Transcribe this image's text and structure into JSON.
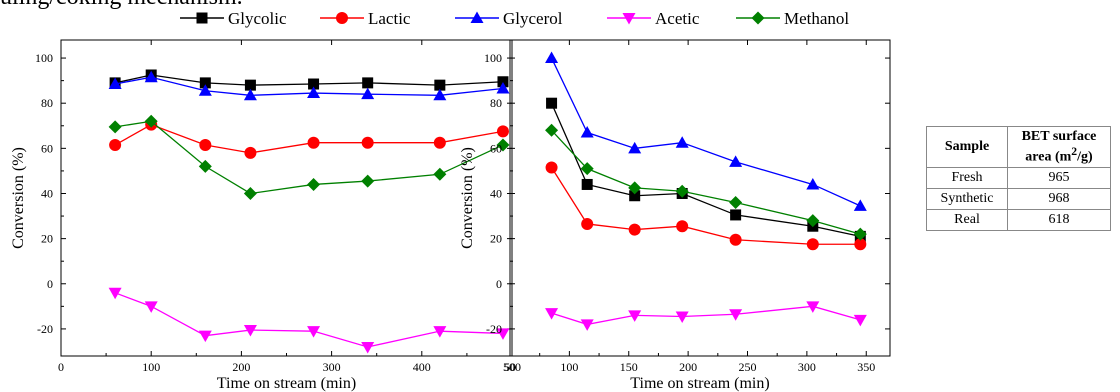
{
  "caption_fragment": "uling/coking mechanism.",
  "legend": [
    {
      "name": "Glycolic",
      "color": "#000000",
      "marker": "square"
    },
    {
      "name": "Lactic",
      "color": "#ff0000",
      "marker": "circle"
    },
    {
      "name": "Glycerol",
      "color": "#0000ff",
      "marker": "triangle-up"
    },
    {
      "name": "Acetic",
      "color": "#ff00ff",
      "marker": "triangle-down"
    },
    {
      "name": "Methanol",
      "color": "#008000",
      "marker": "diamond"
    }
  ],
  "chart_data": [
    {
      "type": "line",
      "xlabel": "Time on stream (min)",
      "ylabel": "Conversion (%)",
      "xlim": [
        0,
        500
      ],
      "ylim": [
        -32,
        108
      ],
      "xticks": [
        0,
        100,
        200,
        300,
        400,
        500
      ],
      "yticks": [
        -20,
        0,
        20,
        40,
        60,
        80,
        100
      ],
      "grid": false,
      "series": [
        {
          "name": "Glycolic",
          "x": [
            60,
            100,
            160,
            210,
            280,
            340,
            420,
            490
          ],
          "y": [
            89,
            92.5,
            89,
            88,
            88.5,
            89,
            88,
            89.5
          ]
        },
        {
          "name": "Lactic",
          "x": [
            60,
            100,
            160,
            210,
            280,
            340,
            420,
            490
          ],
          "y": [
            61.5,
            70.5,
            61.5,
            58,
            62.5,
            62.5,
            62.5,
            67.5
          ]
        },
        {
          "name": "Glycerol",
          "x": [
            60,
            100,
            160,
            210,
            280,
            340,
            420,
            490
          ],
          "y": [
            88.5,
            91.5,
            85.5,
            83.5,
            84.5,
            84,
            83.5,
            86.5
          ]
        },
        {
          "name": "Acetic",
          "x": [
            60,
            100,
            160,
            210,
            280,
            340,
            420,
            490
          ],
          "y": [
            -4,
            -10,
            -23,
            -20.5,
            -21,
            -28,
            -21,
            -22
          ]
        },
        {
          "name": "Methanol",
          "x": [
            60,
            100,
            160,
            210,
            280,
            340,
            420,
            490
          ],
          "y": [
            69.5,
            72,
            52,
            40,
            44,
            45.5,
            48.5,
            61.5
          ]
        }
      ]
    },
    {
      "type": "line",
      "xlabel": "Time on stream (min)",
      "ylabel": "Conversion (%)",
      "xlim": [
        50,
        370
      ],
      "ylim": [
        -32,
        108
      ],
      "xticks": [
        50,
        100,
        150,
        200,
        250,
        300,
        350
      ],
      "yticks": [
        -20,
        0,
        20,
        40,
        60,
        80,
        100
      ],
      "grid": false,
      "series": [
        {
          "name": "Glycolic",
          "x": [
            85,
            115,
            155,
            195,
            240,
            305,
            345
          ],
          "y": [
            80,
            44,
            39,
            40,
            30.5,
            25.5,
            21
          ]
        },
        {
          "name": "Lactic",
          "x": [
            85,
            115,
            155,
            195,
            240,
            305,
            345
          ],
          "y": [
            51.5,
            26.5,
            24,
            25.5,
            19.5,
            17.5,
            17.5
          ]
        },
        {
          "name": "Glycerol",
          "x": [
            85,
            115,
            155,
            195,
            240,
            305,
            345
          ],
          "y": [
            100,
            67,
            60,
            62.5,
            54,
            44,
            34.5
          ]
        },
        {
          "name": "Acetic",
          "x": [
            85,
            115,
            155,
            195,
            240,
            305,
            345
          ],
          "y": [
            -13,
            -18,
            -14,
            -14.5,
            -13.5,
            -10,
            -16
          ]
        },
        {
          "name": "Methanol",
          "x": [
            85,
            115,
            155,
            195,
            240,
            305,
            345
          ],
          "y": [
            68,
            51,
            42.5,
            41,
            36,
            28,
            22
          ]
        }
      ]
    },
    {
      "type": "table",
      "columns": [
        "Sample",
        "BET surface area (m²/g)"
      ],
      "rows": [
        [
          "Fresh",
          "965"
        ],
        [
          "Synthetic",
          "968"
        ],
        [
          "Real",
          "618"
        ]
      ]
    }
  ],
  "table": {
    "header_sample": "Sample",
    "header_bet_pre": "BET surface",
    "header_bet_unit_pre": "area (m",
    "header_bet_sup": "2",
    "header_bet_unit_post": "/g)",
    "rows": [
      {
        "sample": "Fresh",
        "value": "965"
      },
      {
        "sample": "Synthetic",
        "value": "968"
      },
      {
        "sample": "Real",
        "value": "618"
      }
    ]
  }
}
